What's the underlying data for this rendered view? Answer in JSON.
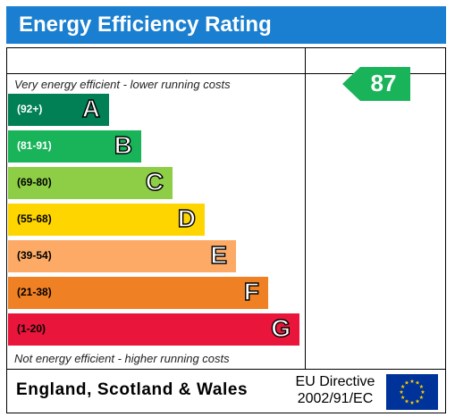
{
  "header": {
    "title": "Energy Efficiency Rating"
  },
  "notes": {
    "top": "Very energy efficient - lower running costs",
    "bottom": "Not energy efficient - higher running costs"
  },
  "bands": [
    {
      "range": "(92+)",
      "letter": "A",
      "color": "#008054",
      "text_color": "#ffffff"
    },
    {
      "range": "(81-91)",
      "letter": "B",
      "color": "#19b459",
      "text_color": "#ffffff"
    },
    {
      "range": "(69-80)",
      "letter": "C",
      "color": "#8dce46",
      "text_color": "#000000"
    },
    {
      "range": "(55-68)",
      "letter": "D",
      "color": "#ffd500",
      "text_color": "#000000"
    },
    {
      "range": "(39-54)",
      "letter": "E",
      "color": "#fcaa65",
      "text_color": "#000000"
    },
    {
      "range": "(21-38)",
      "letter": "F",
      "color": "#ef8023",
      "text_color": "#000000"
    },
    {
      "range": "(1-20)",
      "letter": "G",
      "color": "#e9153b",
      "text_color": "#000000"
    }
  ],
  "current_rating": {
    "value": "87",
    "band": "B",
    "color": "#19b459"
  },
  "footer": {
    "region": "England, Scotland & Wales",
    "directive_line1": "EU Directive",
    "directive_line2": "2002/91/EC"
  },
  "flag": {
    "name": "eu-flag-icon",
    "background": "#003399",
    "stars": "#ffcc00"
  }
}
